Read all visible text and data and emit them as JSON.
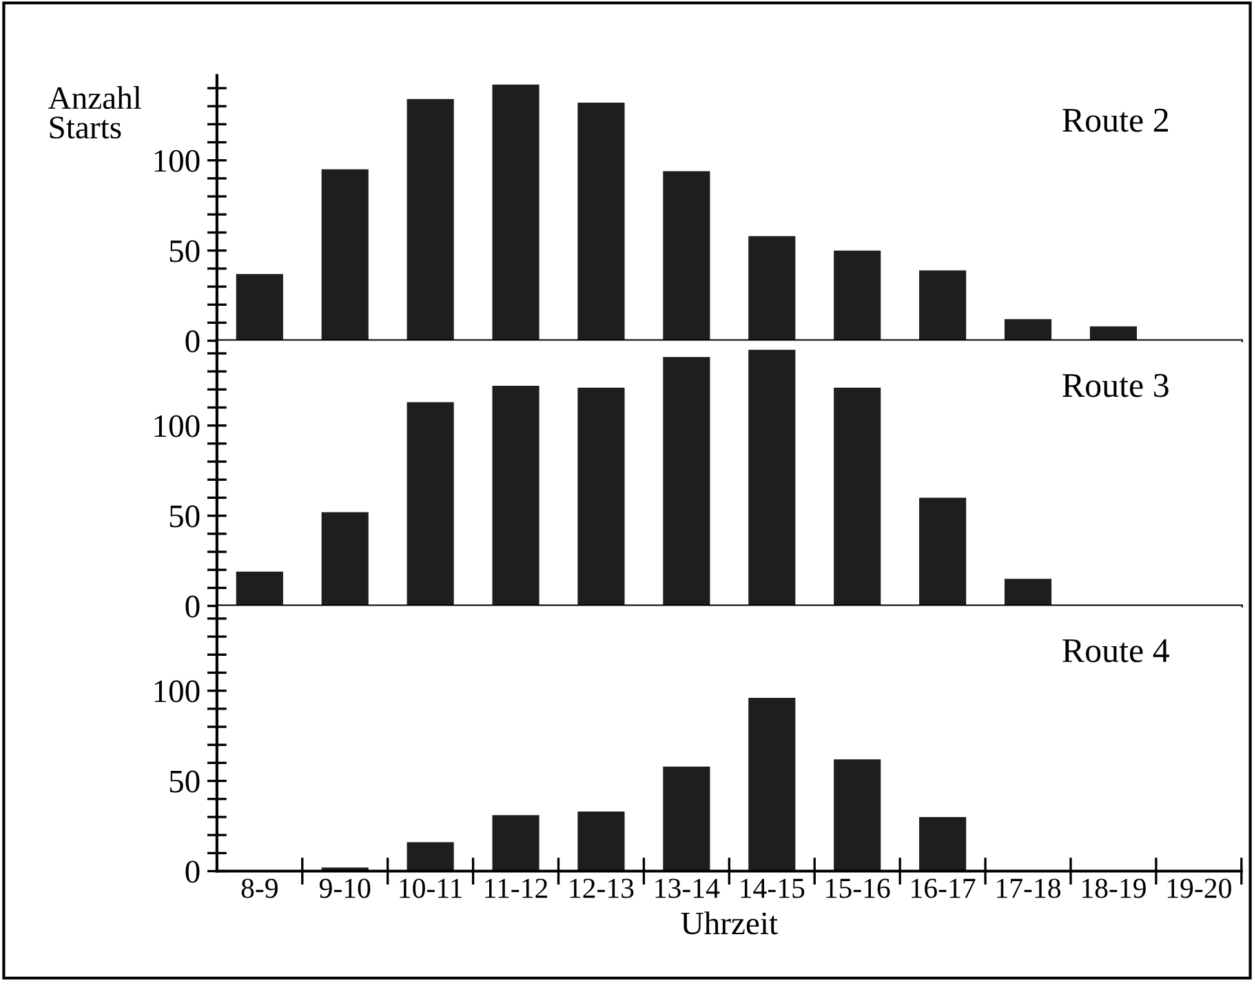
{
  "chart_data": [
    {
      "type": "bar",
      "ylabel": "Anzahl\nStarts",
      "categories": [
        null,
        null,
        null,
        null,
        null,
        null,
        null,
        null,
        null,
        null,
        null,
        null
      ],
      "series": [
        {
          "name": "Route 2",
          "color": "#1e1e1e",
          "values": [
            37,
            95,
            134,
            142,
            132,
            94,
            58,
            50,
            39,
            12,
            8,
            0
          ]
        }
      ],
      "ylim": [
        0,
        147
      ],
      "yticks": [
        0,
        {
          "value": 10,
          "label": null
        },
        {
          "value": 20,
          "label": null
        },
        {
          "value": 30,
          "label": null
        },
        {
          "value": 40,
          "label": null
        },
        50,
        {
          "value": 60,
          "label": null
        },
        {
          "value": 70,
          "label": null
        },
        {
          "value": 80,
          "label": null
        },
        {
          "value": 90,
          "label": null
        },
        100,
        {
          "value": 110,
          "label": null
        },
        {
          "value": 120,
          "label": null
        },
        {
          "value": 130,
          "label": null
        },
        {
          "value": 140,
          "label": null
        }
      ],
      "tick_labels": "y",
      "grid": false
    },
    {
      "type": "bar",
      "categories": [
        null,
        null,
        null,
        null,
        null,
        null,
        null,
        null,
        null,
        null,
        null,
        null
      ],
      "series": [
        {
          "name": "Route 3",
          "color": "#1e1e1e",
          "values": [
            19,
            52,
            113,
            122,
            121,
            138,
            142,
            121,
            60,
            15,
            0,
            0
          ]
        }
      ],
      "ylim": [
        0,
        147
      ],
      "yticks": [
        0,
        {
          "value": 10,
          "label": null
        },
        {
          "value": 20,
          "label": null
        },
        {
          "value": 30,
          "label": null
        },
        {
          "value": 40,
          "label": null
        },
        50,
        {
          "value": 60,
          "label": null
        },
        {
          "value": 70,
          "label": null
        },
        {
          "value": 80,
          "label": null
        },
        {
          "value": 90,
          "label": null
        },
        100,
        {
          "value": 110,
          "label": null
        },
        {
          "value": 120,
          "label": null
        },
        {
          "value": 130,
          "label": null
        },
        {
          "value": 140,
          "label": null
        }
      ],
      "tick_labels": "y",
      "grid": false
    },
    {
      "type": "bar",
      "xlabel": "Uhrzeit",
      "categories": [
        "8-9",
        "9-10",
        "10-11",
        "11-12",
        "12-13",
        "13-14",
        "14-15",
        "15-16",
        "16-17",
        "17-18",
        "18-19",
        "19-20"
      ],
      "series": [
        {
          "name": "Route 4",
          "color": "#1e1e1e",
          "values": [
            0,
            2,
            16,
            31,
            33,
            58,
            96,
            62,
            30,
            0,
            0,
            0
          ]
        }
      ],
      "ylim": [
        0,
        147
      ],
      "yticks": [
        0,
        {
          "value": 10,
          "label": null
        },
        {
          "value": 20,
          "label": null
        },
        {
          "value": 30,
          "label": null
        },
        {
          "value": 40,
          "label": null
        },
        50,
        {
          "value": 60,
          "label": null
        },
        {
          "value": 70,
          "label": null
        },
        {
          "value": 80,
          "label": null
        },
        {
          "value": 90,
          "label": null
        },
        100,
        {
          "value": 110,
          "label": null
        },
        {
          "value": 120,
          "label": null
        },
        {
          "value": 130,
          "label": null
        },
        {
          "value": 140,
          "label": null
        }
      ],
      "grid": false
    }
  ]
}
